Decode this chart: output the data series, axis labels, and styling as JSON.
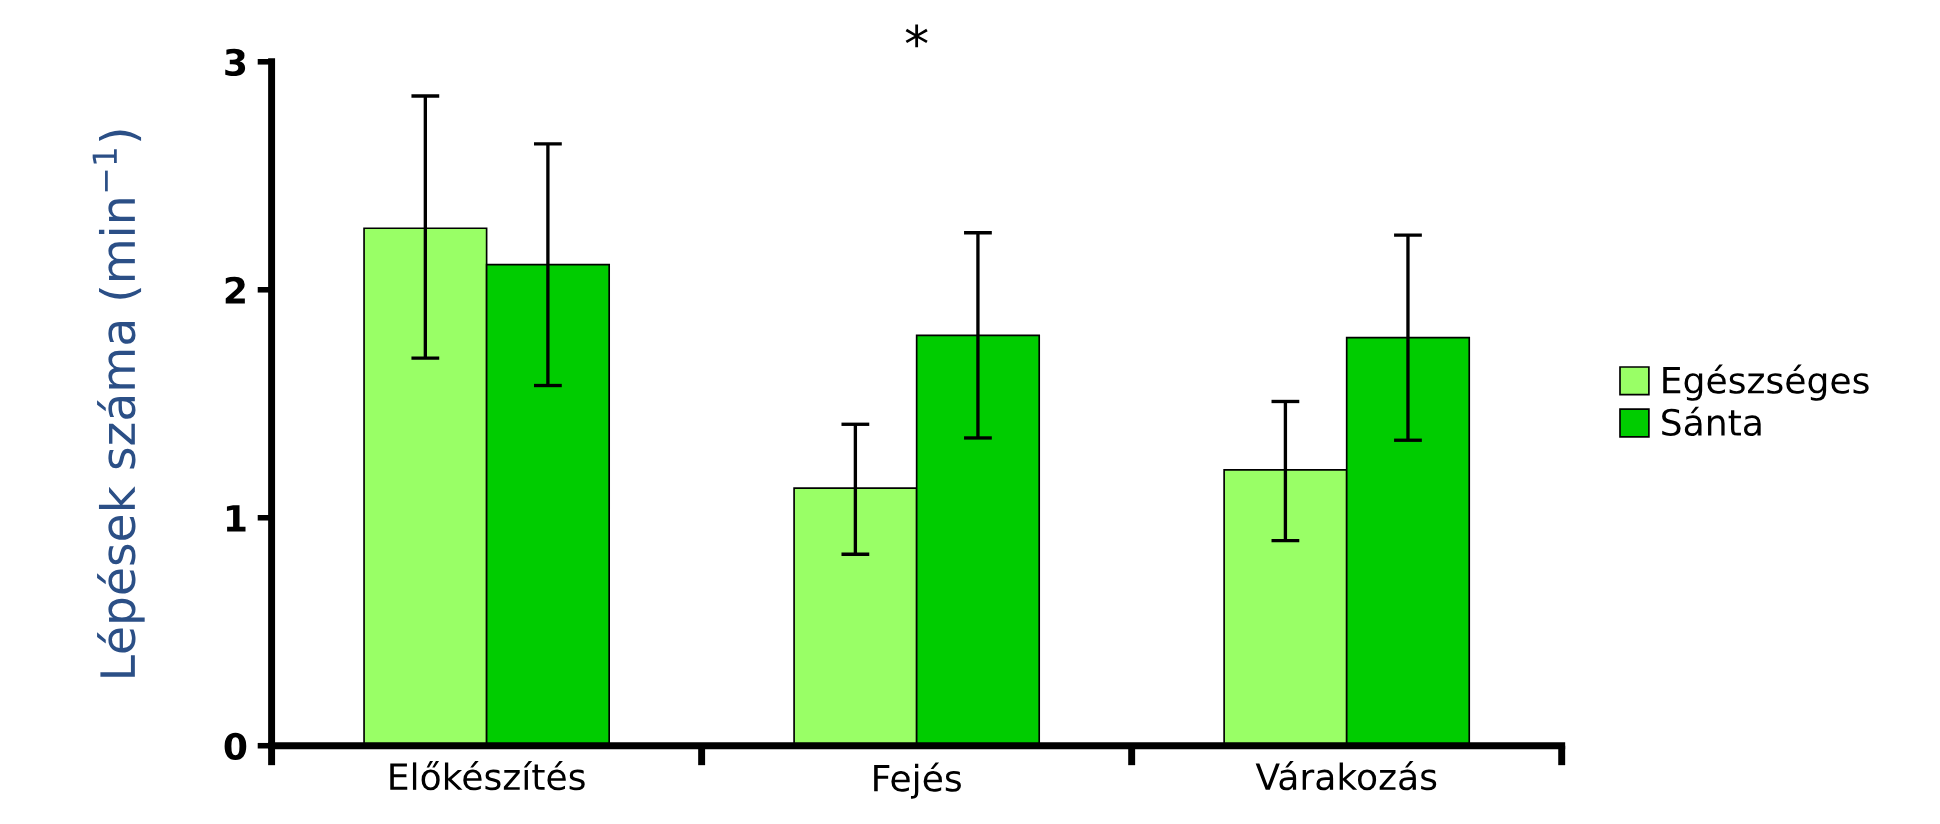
{
  "chart_data": {
    "type": "bar",
    "ylabel": "Lépések száma (min$^{−1}$)",
    "categories": [
      "Előkészítés",
      "Fejés",
      "Várakozás"
    ],
    "series": [
      {
        "name": "Egészséges",
        "color": "#99ff66",
        "values": [
          2.27,
          1.13,
          1.21
        ],
        "errors": [
          [
            1.7,
            2.85
          ],
          [
            0.84,
            1.41
          ],
          [
            0.9,
            1.51
          ]
        ]
      },
      {
        "name": "Sánta",
        "color": "#00cc00",
        "values": [
          2.11,
          1.8,
          1.79
        ],
        "errors": [
          [
            1.58,
            2.64
          ],
          [
            1.35,
            2.25
          ],
          [
            1.34,
            2.24
          ]
        ]
      }
    ],
    "ylim": [
      0,
      3
    ],
    "yticks": [
      0,
      1,
      2,
      3
    ],
    "grid": false,
    "legend": "right",
    "annotations": [
      "*"
    ]
  }
}
